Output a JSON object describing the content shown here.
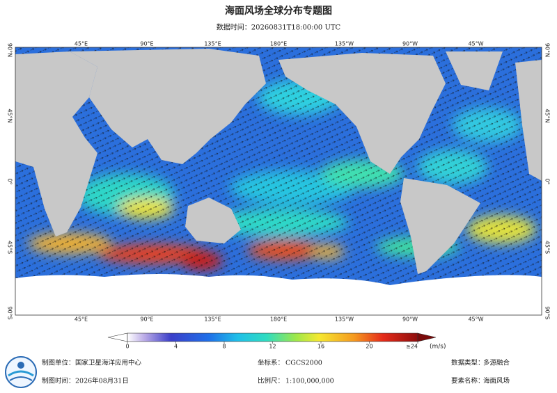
{
  "header": {
    "title": "海面风场全球分布专题图",
    "subtitle": "数据时间：20260831T18:00:00 UTC"
  },
  "map": {
    "lon_labels": [
      "45°E",
      "90°E",
      "135°E",
      "180°E",
      "135°W",
      "90°W",
      "45°W"
    ],
    "lat_labels": [
      "90°N",
      "45°N",
      "0°",
      "45°S",
      "90°S"
    ]
  },
  "colorbar": {
    "range": [
      0,
      24
    ],
    "ticks": [
      0,
      4,
      8,
      12,
      16,
      20,
      {
        "value": 24,
        "label": "≥24"
      }
    ],
    "unit": "(m/s)"
  },
  "footer": {
    "producer_label": "制图单位：",
    "producer": "国家卫星海洋应用中心",
    "crs_label": "坐标系：",
    "crs": "CGCS2000",
    "data_type_label": "数据类型：",
    "data_type": "多源融合",
    "date_label": "制图时间：",
    "date": "2026年08月31日",
    "scale_label": "比例尺：",
    "scale": "1:100,000,000",
    "element_label": "要素名称：",
    "element": "海面风场"
  }
}
